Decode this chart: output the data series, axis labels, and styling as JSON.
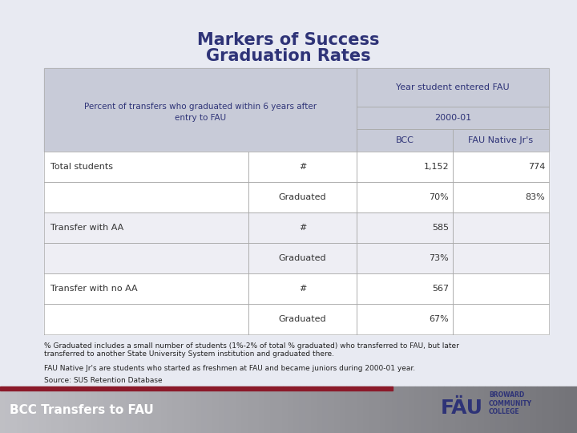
{
  "title_line1": "Markers of Success",
  "title_line2": "Graduation Rates",
  "title_color": "#2E3377",
  "bg_color": "#E8EAF2",
  "table_header_bg": "#C8CBD8",
  "table_row_bg1": "#FFFFFF",
  "table_row_bg2": "#EEEEF4",
  "header_text_color": "#2E3377",
  "cell_text_color": "#333333",
  "rows": [
    [
      "Total students",
      "#",
      "1,152",
      "774"
    ],
    [
      "",
      "Graduated",
      "70%",
      "83%"
    ],
    [
      "Transfer with AA",
      "#",
      "585",
      ""
    ],
    [
      "",
      "Graduated",
      "73%",
      ""
    ],
    [
      "Transfer with no AA",
      "#",
      "567",
      ""
    ],
    [
      "",
      "Graduated",
      "67%",
      ""
    ]
  ],
  "footnote1": "% Graduated includes a small number of students (1%-2% of total % graduated) who transferred to FAU, but later",
  "footnote1b": "transferred to another State University System institution and graduated there.",
  "footnote2": "FAU Native Jr's are students who started as freshmen at FAU and became juniors during 2000-01 year.",
  "footnote3": "Source: SUS Retention Database",
  "footer_text": "BCC Transfers to FAU",
  "footer_bar_color": "#8B1A2A",
  "footer_text_color": "#FFFFFF",
  "footer_text_size": 11
}
